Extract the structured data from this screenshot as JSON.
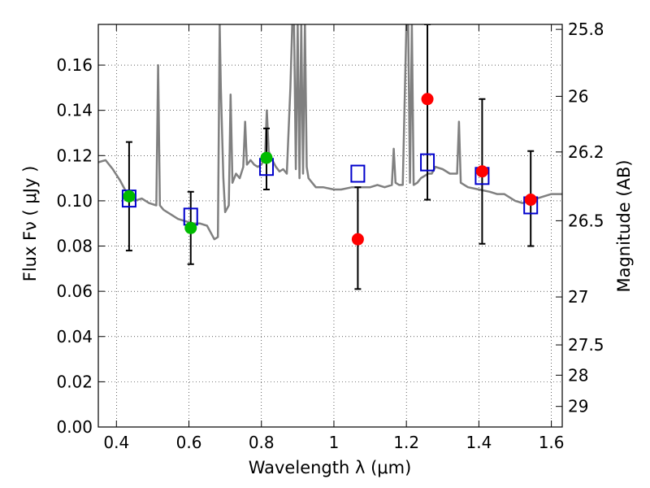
{
  "chart_data": {
    "type": "scatter",
    "xlabel": "Wavelength  λ (μm)",
    "ylabel_left": "Flux  Fν  ( μJy )",
    "ylabel_right": "Magnitude (AB)",
    "xlim": [
      0.35,
      1.63
    ],
    "ylim": [
      0.0,
      0.178
    ],
    "grid": true,
    "x_ticks": [
      0.4,
      0.6,
      0.8,
      1.0,
      1.2,
      1.4,
      1.6
    ],
    "x_tick_labels": [
      "0.4",
      "0.6",
      "0.8",
      "1",
      "1.2",
      "1.4",
      "1.6"
    ],
    "y_ticks": [
      0.0,
      0.02,
      0.04,
      0.06,
      0.08,
      0.1,
      0.12,
      0.14,
      0.16
    ],
    "y_tick_labels": [
      "0.00",
      "0.02",
      "0.04",
      "0.06",
      "0.08",
      "0.10",
      "0.12",
      "0.14",
      "0.16"
    ],
    "right_axis_ticks": [
      {
        "label": "25.8",
        "flux": 0.1758
      },
      {
        "label": "26",
        "flux": 0.1462
      },
      {
        "label": "26.2",
        "flux": 0.1216
      },
      {
        "label": "26.5",
        "flux": 0.0912
      },
      {
        "label": "27",
        "flux": 0.0575
      },
      {
        "label": "27.5",
        "flux": 0.0363
      },
      {
        "label": "28",
        "flux": 0.0229
      },
      {
        "label": "29",
        "flux": 0.0091
      }
    ],
    "series": [
      {
        "style": "line",
        "color": "#808080",
        "x": [
          0.35,
          0.37,
          0.39,
          0.41,
          0.43,
          0.45,
          0.47,
          0.49,
          0.51,
          0.515,
          0.52,
          0.525,
          0.53,
          0.55,
          0.57,
          0.59,
          0.61,
          0.63,
          0.65,
          0.67,
          0.68,
          0.685,
          0.688,
          0.695,
          0.7,
          0.71,
          0.715,
          0.72,
          0.73,
          0.74,
          0.75,
          0.755,
          0.76,
          0.77,
          0.78,
          0.79,
          0.8,
          0.81,
          0.815,
          0.82,
          0.83,
          0.84,
          0.85,
          0.86,
          0.87,
          0.88,
          0.885,
          0.89,
          0.895,
          0.9,
          0.905,
          0.91,
          0.915,
          0.92,
          0.925,
          0.93,
          0.95,
          0.97,
          1.0,
          1.02,
          1.05,
          1.08,
          1.1,
          1.12,
          1.14,
          1.16,
          1.165,
          1.17,
          1.18,
          1.19,
          1.2,
          1.205,
          1.21,
          1.215,
          1.22,
          1.23,
          1.24,
          1.25,
          1.26,
          1.27,
          1.28,
          1.3,
          1.32,
          1.34,
          1.345,
          1.35,
          1.37,
          1.4,
          1.43,
          1.45,
          1.47,
          1.5,
          1.52,
          1.54,
          1.56,
          1.58,
          1.6,
          1.63
        ],
        "y": [
          0.117,
          0.118,
          0.114,
          0.109,
          0.103,
          0.1,
          0.101,
          0.099,
          0.098,
          0.16,
          0.098,
          0.097,
          0.096,
          0.094,
          0.092,
          0.091,
          0.09,
          0.09,
          0.089,
          0.083,
          0.084,
          0.178,
          0.15,
          0.11,
          0.095,
          0.098,
          0.147,
          0.108,
          0.112,
          0.11,
          0.115,
          0.135,
          0.116,
          0.118,
          0.116,
          0.115,
          0.116,
          0.119,
          0.14,
          0.122,
          0.118,
          0.115,
          0.113,
          0.114,
          0.112,
          0.15,
          0.178,
          0.178,
          0.114,
          0.178,
          0.11,
          0.178,
          0.112,
          0.178,
          0.115,
          0.11,
          0.106,
          0.106,
          0.105,
          0.105,
          0.106,
          0.106,
          0.106,
          0.107,
          0.106,
          0.107,
          0.123,
          0.108,
          0.107,
          0.107,
          0.178,
          0.178,
          0.108,
          0.178,
          0.107,
          0.108,
          0.11,
          0.111,
          0.112,
          0.112,
          0.115,
          0.114,
          0.112,
          0.112,
          0.135,
          0.108,
          0.106,
          0.105,
          0.104,
          0.103,
          0.103,
          0.1,
          0.099,
          0.1,
          0.101,
          0.102,
          0.103,
          0.103
        ]
      },
      {
        "style": "open-square",
        "color": "#0000cc",
        "x": [
          0.435,
          0.605,
          0.814,
          1.066,
          1.258,
          1.409,
          1.543
        ],
        "y": [
          0.101,
          0.093,
          0.115,
          0.112,
          0.117,
          0.111,
          0.098
        ]
      },
      {
        "style": "filled-circle",
        "color": "#00bb00",
        "x": [
          0.435,
          0.605,
          0.814
        ],
        "y": [
          0.102,
          0.088,
          0.119
        ]
      },
      {
        "style": "filled-circle",
        "color": "#ff0000",
        "x": [
          1.066,
          1.258,
          1.409,
          1.543
        ],
        "y": [
          0.083,
          0.145,
          0.113,
          0.1005
        ]
      },
      {
        "style": "errorbar",
        "color": "#000000",
        "x": [
          0.435,
          0.605,
          0.814,
          1.066,
          1.258,
          1.409,
          1.543
        ],
        "ylow": [
          0.078,
          0.072,
          0.105,
          0.061,
          0.1005,
          0.081,
          0.08
        ],
        "yhigh": [
          0.126,
          0.104,
          0.132,
          0.106,
          0.178,
          0.145,
          0.122
        ]
      }
    ]
  }
}
